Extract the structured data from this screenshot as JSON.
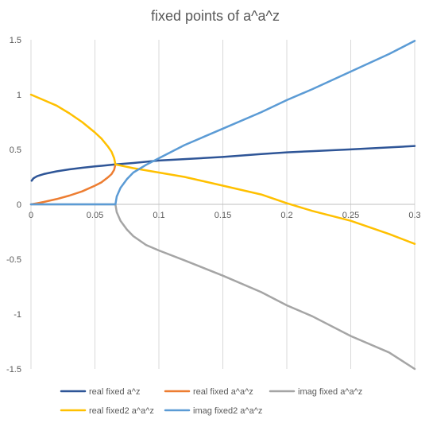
{
  "chart_data": {
    "type": "line",
    "title": "fixed points of a^a^z",
    "xlabel": "",
    "ylabel": "",
    "xlim": [
      0,
      0.3
    ],
    "ylim": [
      -1.5,
      1.5
    ],
    "x_ticks": [
      0,
      0.05,
      0.1,
      0.15,
      0.2,
      0.25,
      0.3
    ],
    "x_tick_labels": [
      "0",
      "0.05",
      "0.1",
      "0.15",
      "0.2",
      "0.25",
      "0.3"
    ],
    "y_ticks": [
      1.5,
      1,
      0.5,
      0,
      -0.5,
      -1,
      -1.5
    ],
    "y_tick_labels": [
      "1.5",
      "1",
      "0.5",
      "0",
      "-0.5",
      "-1",
      "-1.5"
    ],
    "grid": "vertical",
    "legend_position": "bottom",
    "series": [
      {
        "name": "real fixed a^z",
        "color": "#2e5597",
        "x": [
          0.0005,
          0.002,
          0.005,
          0.01,
          0.02,
          0.03,
          0.04,
          0.05,
          0.066,
          0.08,
          0.1,
          0.12,
          0.15,
          0.18,
          0.2,
          0.22,
          0.25,
          0.28,
          0.3
        ],
        "y": [
          0.215,
          0.238,
          0.258,
          0.276,
          0.301,
          0.319,
          0.333,
          0.346,
          0.364,
          0.377,
          0.399,
          0.412,
          0.432,
          0.458,
          0.474,
          0.485,
          0.501,
          0.519,
          0.532
        ]
      },
      {
        "name": "real fixed a^a^z",
        "color": "#ed7d31",
        "x": [
          0,
          0.005,
          0.01,
          0.02,
          0.03,
          0.04,
          0.05,
          0.055,
          0.06,
          0.063,
          0.065,
          0.066
        ],
        "y": [
          0,
          0.01,
          0.022,
          0.048,
          0.08,
          0.118,
          0.17,
          0.2,
          0.244,
          0.275,
          0.315,
          0.364
        ]
      },
      {
        "name": "imag fixed a^a^z",
        "color": "#a5a5a5",
        "x": [
          0,
          0.066,
          0.067,
          0.07,
          0.075,
          0.08,
          0.09,
          0.1,
          0.12,
          0.15,
          0.18,
          0.2,
          0.22,
          0.25,
          0.28,
          0.3
        ],
        "y": [
          0,
          0,
          -0.07,
          -0.15,
          -0.23,
          -0.29,
          -0.37,
          -0.42,
          -0.51,
          -0.65,
          -0.8,
          -0.92,
          -1.02,
          -1.2,
          -1.35,
          -1.5
        ]
      },
      {
        "name": "real fixed2 a^a^z",
        "color": "#ffc000",
        "x": [
          0,
          0.01,
          0.02,
          0.03,
          0.04,
          0.05,
          0.055,
          0.06,
          0.063,
          0.065,
          0.066,
          0.08,
          0.1,
          0.12,
          0.15,
          0.18,
          0.2,
          0.22,
          0.25,
          0.28,
          0.3
        ],
        "y": [
          1,
          0.95,
          0.9,
          0.83,
          0.75,
          0.655,
          0.6,
          0.53,
          0.48,
          0.42,
          0.364,
          0.33,
          0.29,
          0.25,
          0.17,
          0.09,
          0.01,
          -0.06,
          -0.15,
          -0.27,
          -0.36
        ]
      },
      {
        "name": "imag fixed2 a^a^z",
        "color": "#5b9bd5",
        "x": [
          0,
          0.066,
          0.067,
          0.07,
          0.075,
          0.08,
          0.09,
          0.1,
          0.12,
          0.15,
          0.18,
          0.2,
          0.22,
          0.25,
          0.28,
          0.3
        ],
        "y": [
          0,
          0,
          0.07,
          0.15,
          0.23,
          0.29,
          0.36,
          0.42,
          0.54,
          0.69,
          0.84,
          0.95,
          1.05,
          1.21,
          1.37,
          1.49
        ]
      }
    ]
  }
}
